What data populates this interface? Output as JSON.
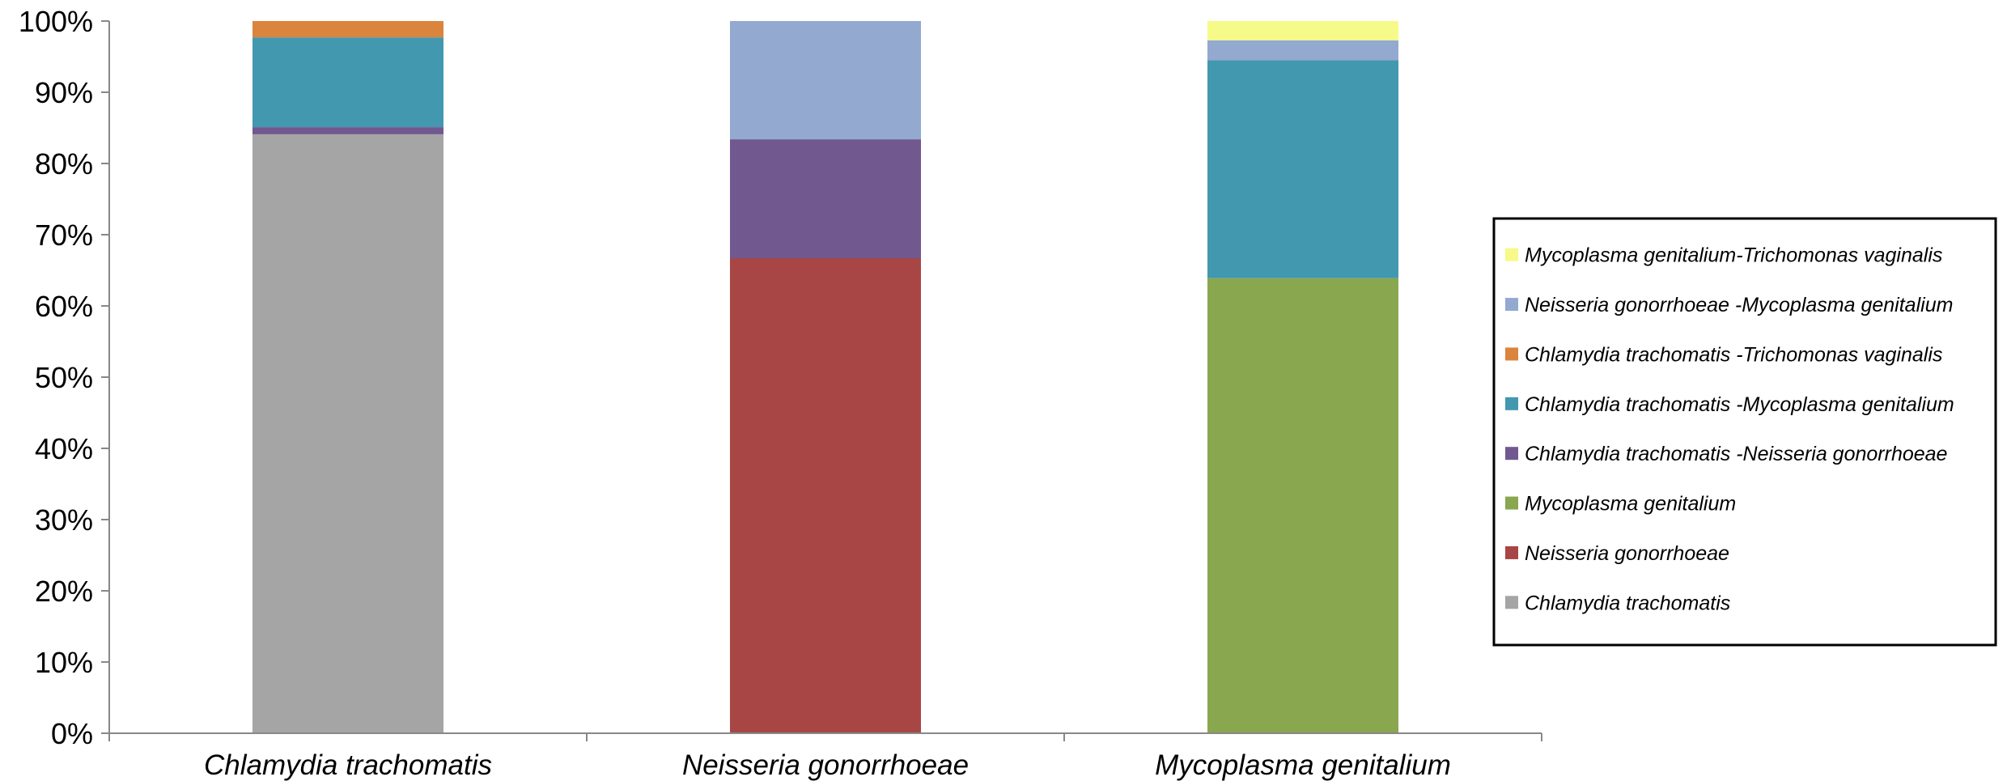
{
  "chart_data": {
    "type": "bar",
    "stacked": true,
    "percent_stacked": true,
    "categories": [
      "Chlamydia trachomatis",
      "Neisseria gonorrhoeae",
      "Mycoplasma genitalium"
    ],
    "yticks": [
      "0%",
      "10%",
      "20%",
      "30%",
      "40%",
      "50%",
      "60%",
      "70%",
      "80%",
      "90%",
      "100%"
    ],
    "ylim": [
      0,
      100
    ],
    "grid": false,
    "legend_position": "right",
    "series": [
      {
        "name": "Chlamydia trachomatis",
        "color": "#a5a5a5",
        "values": [
          84.1,
          0,
          0
        ]
      },
      {
        "name": "Neisseria gonorrhoeae",
        "color": "#a84645",
        "values": [
          0,
          66.7,
          0
        ]
      },
      {
        "name": "Mycoplasma genitalium",
        "color": "#89a74e",
        "values": [
          0,
          0,
          63.9
        ]
      },
      {
        "name": "Chlamydia trachomatis -Neisseria gonorrhoeae",
        "color": "#71588f",
        "values": [
          1.0,
          16.7,
          0
        ]
      },
      {
        "name": "Chlamydia trachomatis -Mycoplasma genitalium",
        "color": "#4298af",
        "values": [
          12.6,
          0,
          30.6
        ]
      },
      {
        "name": "Chlamydia trachomatis -Trichomonas vaginalis",
        "color": "#db843d",
        "values": [
          2.3,
          0,
          0
        ]
      },
      {
        "name": "Neisseria gonorrhoeae -Mycoplasma genitalium",
        "color": "#93a9d0",
        "values": [
          0,
          16.6,
          2.8
        ]
      },
      {
        "name": "Mycoplasma genitalium-Trichomonas vaginalis",
        "color": "#f6fa89",
        "values": [
          0,
          0,
          2.7
        ]
      }
    ]
  }
}
